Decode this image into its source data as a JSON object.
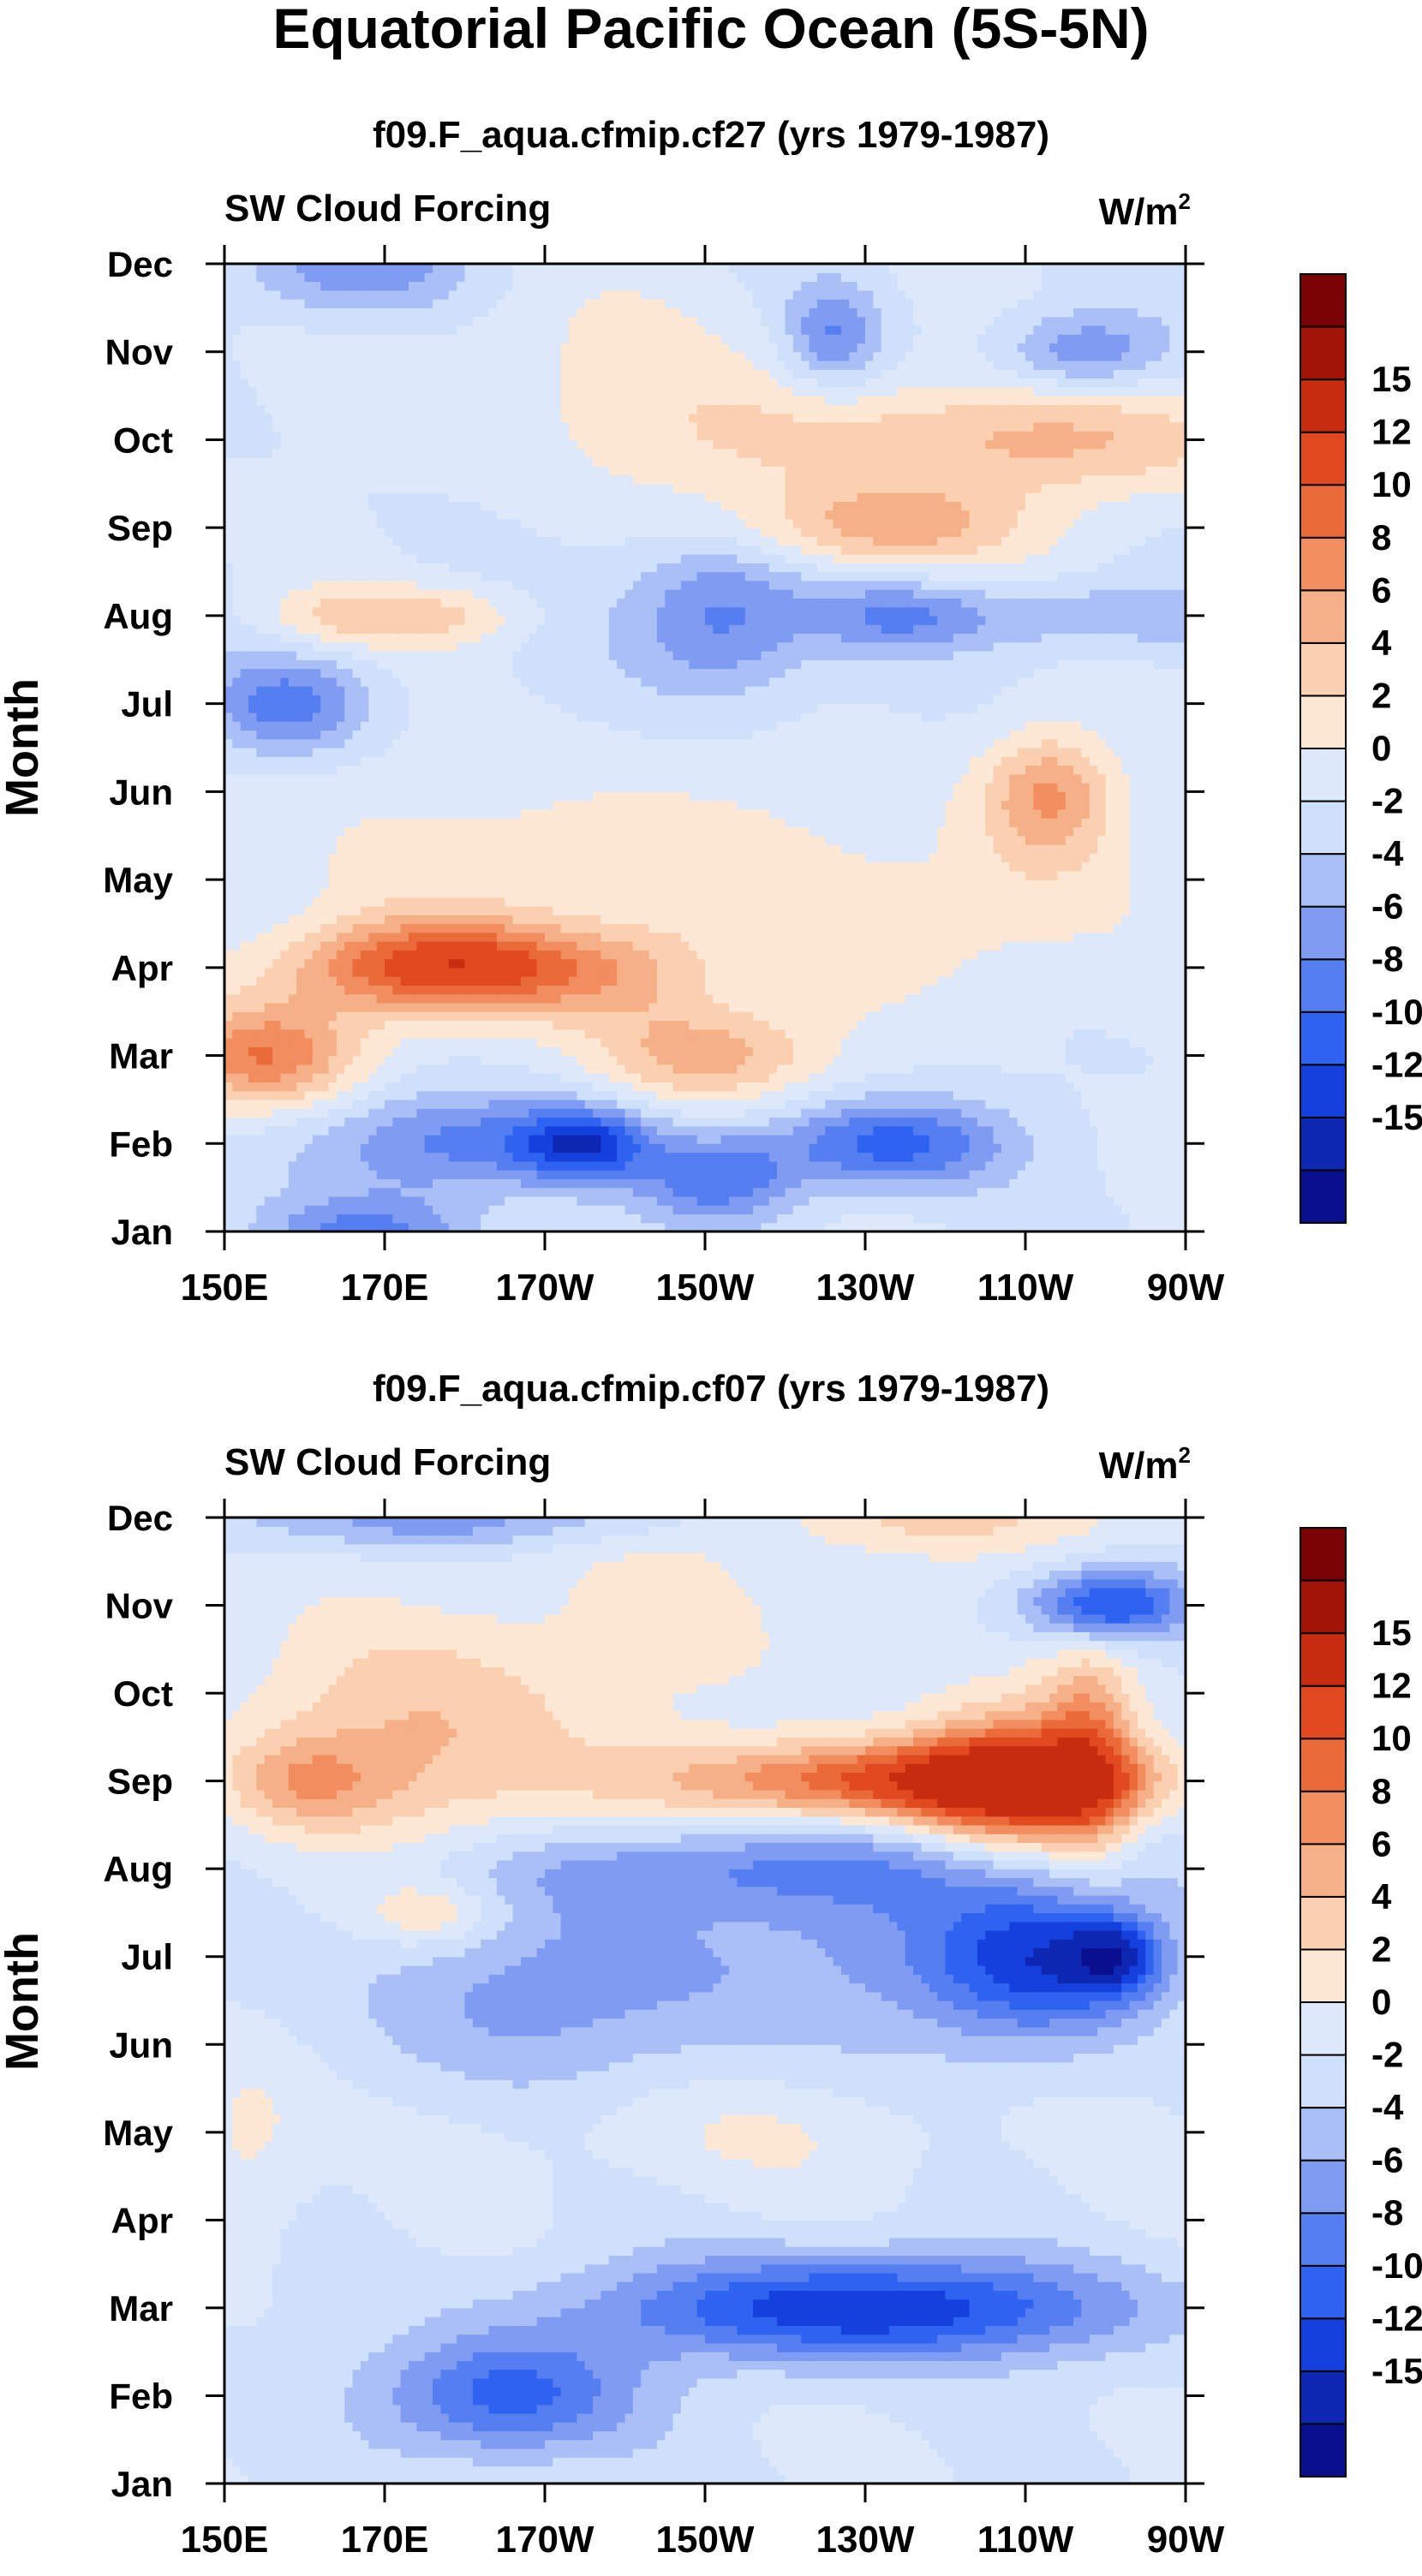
{
  "title": "Equatorial Pacific Ocean (5S-5N)",
  "colorbar": {
    "colors": [
      "#0a0f8f",
      "#0d27b3",
      "#1441de",
      "#2e62f0",
      "#557ff0",
      "#7f9cf2",
      "#a9bff6",
      "#cfe0fb",
      "#dde9fb",
      "#fde8d6",
      "#fbd0b0",
      "#f6b087",
      "#f18d5e",
      "#ea6a3a",
      "#e04a1e",
      "#c82c0f",
      "#a31408",
      "#7a0202"
    ],
    "labels": [
      "15",
      "12",
      "10",
      "8",
      "6",
      "4",
      "2",
      "0",
      "-2",
      "-4",
      "-6",
      "-8",
      "-10",
      "-12",
      "-15"
    ]
  },
  "chart_data": [
    {
      "type": "heatmap",
      "title": "f09.F_aqua.cfmip.cf27 (yrs 1979-1987)",
      "left_label": "SW Cloud Forcing",
      "right_label": "W/m",
      "right_label_sup": "2",
      "xlabel": "",
      "ylabel": "Month",
      "x": [
        "150E",
        "170E",
        "170W",
        "150W",
        "130W",
        "110W",
        "90W"
      ],
      "xlim_deg_east": [
        150,
        270
      ],
      "y": [
        "Jan",
        "Feb",
        "Mar",
        "Apr",
        "May",
        "Jun",
        "Jul",
        "Aug",
        "Sep",
        "Oct",
        "Nov",
        "Dec"
      ],
      "levels": [
        -15,
        -12,
        -10,
        -8,
        -6,
        -4,
        -2,
        0,
        2,
        4,
        6,
        8,
        10,
        12,
        15
      ],
      "features": [
        {
          "lon": 155,
          "month": 2.0,
          "value": 10,
          "size_deg": 12,
          "size_mon": 0.6
        },
        {
          "lon": 170,
          "month": 3.0,
          "value": 8,
          "size_deg": 16,
          "size_mon": 0.55
        },
        {
          "lon": 183,
          "month": 3.0,
          "value": 8,
          "size_deg": 14,
          "size_mon": 0.5
        },
        {
          "lon": 200,
          "month": 2.9,
          "value": 5,
          "size_deg": 12,
          "size_mon": 0.6
        },
        {
          "lon": 210,
          "month": 2.0,
          "value": 7,
          "size_deg": 14,
          "size_mon": 0.55
        },
        {
          "lon": 195,
          "month": 4.2,
          "value": 3,
          "size_deg": 40,
          "size_mon": 1.2
        },
        {
          "lon": 232,
          "month": 3.3,
          "value": 2,
          "size_deg": 20,
          "size_mon": 0.9
        },
        {
          "lon": 253,
          "month": 5.0,
          "value": 7,
          "size_deg": 8,
          "size_mon": 0.7
        },
        {
          "lon": 250,
          "month": 4.0,
          "value": 2,
          "size_deg": 15,
          "size_mon": 1.2
        },
        {
          "lon": 180,
          "month": 1.0,
          "value": -7,
          "size_deg": 18,
          "size_mon": 0.6
        },
        {
          "lon": 195,
          "month": 1.0,
          "value": -9,
          "size_deg": 8,
          "size_mon": 0.4
        },
        {
          "lon": 212,
          "month": 0.6,
          "value": -7,
          "size_deg": 10,
          "size_mon": 0.5
        },
        {
          "lon": 233,
          "month": 1.0,
          "value": -9,
          "size_deg": 14,
          "size_mon": 0.5
        },
        {
          "lon": 168,
          "month": 0.0,
          "value": -6,
          "size_deg": 14,
          "size_mon": 0.4
        },
        {
          "lon": 212,
          "month": 7.0,
          "value": -7,
          "size_deg": 12,
          "size_mon": 0.9
        },
        {
          "lon": 158,
          "month": 6.0,
          "value": -7,
          "size_deg": 10,
          "size_mon": 0.55
        },
        {
          "lon": 234,
          "month": 7.0,
          "value": -5,
          "size_deg": 10,
          "size_mon": 0.4
        },
        {
          "lon": 258,
          "month": 7.0,
          "value": -4,
          "size_deg": 20,
          "size_mon": 0.4
        },
        {
          "lon": 165,
          "month": 7.0,
          "value": 4,
          "size_deg": 10,
          "size_mon": 0.35
        },
        {
          "lon": 178,
          "month": 7.0,
          "value": 4,
          "size_deg": 10,
          "size_mon": 0.35
        },
        {
          "lon": 232,
          "month": 8.0,
          "value": 7,
          "size_deg": 18,
          "size_mon": 0.5
        },
        {
          "lon": 255,
          "month": 9.0,
          "value": 6,
          "size_deg": 28,
          "size_mon": 0.65
        },
        {
          "lon": 215,
          "month": 9.0,
          "value": 3,
          "size_deg": 25,
          "size_mon": 0.8
        },
        {
          "lon": 226,
          "month": 10.2,
          "value": -6,
          "size_deg": 6,
          "size_mon": 0.6
        },
        {
          "lon": 257,
          "month": 10.0,
          "value": -6,
          "size_deg": 10,
          "size_mon": 0.45
        },
        {
          "lon": 166,
          "month": 11.0,
          "value": -6,
          "size_deg": 14,
          "size_mon": 0.6
        },
        {
          "lon": 195,
          "month": 10.0,
          "value": 2,
          "size_deg": 25,
          "size_mon": 1.0
        }
      ]
    },
    {
      "type": "heatmap",
      "title": "f09.F_aqua.cfmip.cf07 (yrs 1979-1987)",
      "left_label": "SW Cloud Forcing",
      "right_label": "W/m",
      "right_label_sup": "2",
      "xlabel": "",
      "ylabel": "Month",
      "x": [
        "150E",
        "170E",
        "170W",
        "150W",
        "130W",
        "110W",
        "90W"
      ],
      "xlim_deg_east": [
        150,
        270
      ],
      "y": [
        "Jan",
        "Feb",
        "Mar",
        "Apr",
        "May",
        "Jun",
        "Jul",
        "Aug",
        "Sep",
        "Oct",
        "Nov",
        "Dec"
      ],
      "levels": [
        -15,
        -12,
        -10,
        -8,
        -6,
        -4,
        -2,
        0,
        2,
        4,
        6,
        8,
        10,
        12,
        15
      ],
      "features": [
        {
          "lon": 236,
          "month": 8.0,
          "value": 13,
          "size_deg": 30,
          "size_mon": 0.45
        },
        {
          "lon": 248,
          "month": 8.0,
          "value": 11,
          "size_deg": 12,
          "size_mon": 0.9
        },
        {
          "lon": 258,
          "month": 8.3,
          "value": 8,
          "size_deg": 6,
          "size_mon": 1.2
        },
        {
          "lon": 175,
          "month": 8.5,
          "value": 6,
          "size_deg": 22,
          "size_mon": 1.4
        },
        {
          "lon": 160,
          "month": 8.0,
          "value": 5,
          "size_deg": 10,
          "size_mon": 0.5
        },
        {
          "lon": 240,
          "month": 11.0,
          "value": 4,
          "size_deg": 30,
          "size_mon": 0.4
        },
        {
          "lon": 210,
          "month": 10.0,
          "value": 2,
          "size_deg": 25,
          "size_mon": 1.5
        },
        {
          "lon": 216,
          "month": 7.0,
          "value": -5,
          "size_deg": 40,
          "size_mon": 0.5
        },
        {
          "lon": 252,
          "month": 6.0,
          "value": -10,
          "size_deg": 14,
          "size_mon": 0.9
        },
        {
          "lon": 261,
          "month": 6.0,
          "value": -9,
          "size_deg": 6,
          "size_mon": 0.45
        },
        {
          "lon": 222,
          "month": 6.0,
          "value": -4,
          "size_deg": 30,
          "size_mon": 1.2
        },
        {
          "lon": 260,
          "month": 10.0,
          "value": -11,
          "size_deg": 10,
          "size_mon": 0.4
        },
        {
          "lon": 230,
          "month": 2.0,
          "value": -12,
          "size_deg": 32,
          "size_mon": 0.6
        },
        {
          "lon": 185,
          "month": 1.0,
          "value": -9,
          "size_deg": 16,
          "size_mon": 0.7
        },
        {
          "lon": 180,
          "month": 11.0,
          "value": -5,
          "size_deg": 35,
          "size_mon": 0.35
        },
        {
          "lon": 185,
          "month": 5.5,
          "value": -4,
          "size_deg": 20,
          "size_mon": 1.0
        },
        {
          "lon": 215,
          "month": 4.0,
          "value": 2,
          "size_deg": 26,
          "size_mon": 0.6
        },
        {
          "lon": 176,
          "month": 6.5,
          "value": 4,
          "size_deg": 8,
          "size_mon": 0.35
        },
        {
          "lon": 153,
          "month": 4.0,
          "value": 3,
          "size_deg": 8,
          "size_mon": 1.0
        }
      ]
    }
  ]
}
